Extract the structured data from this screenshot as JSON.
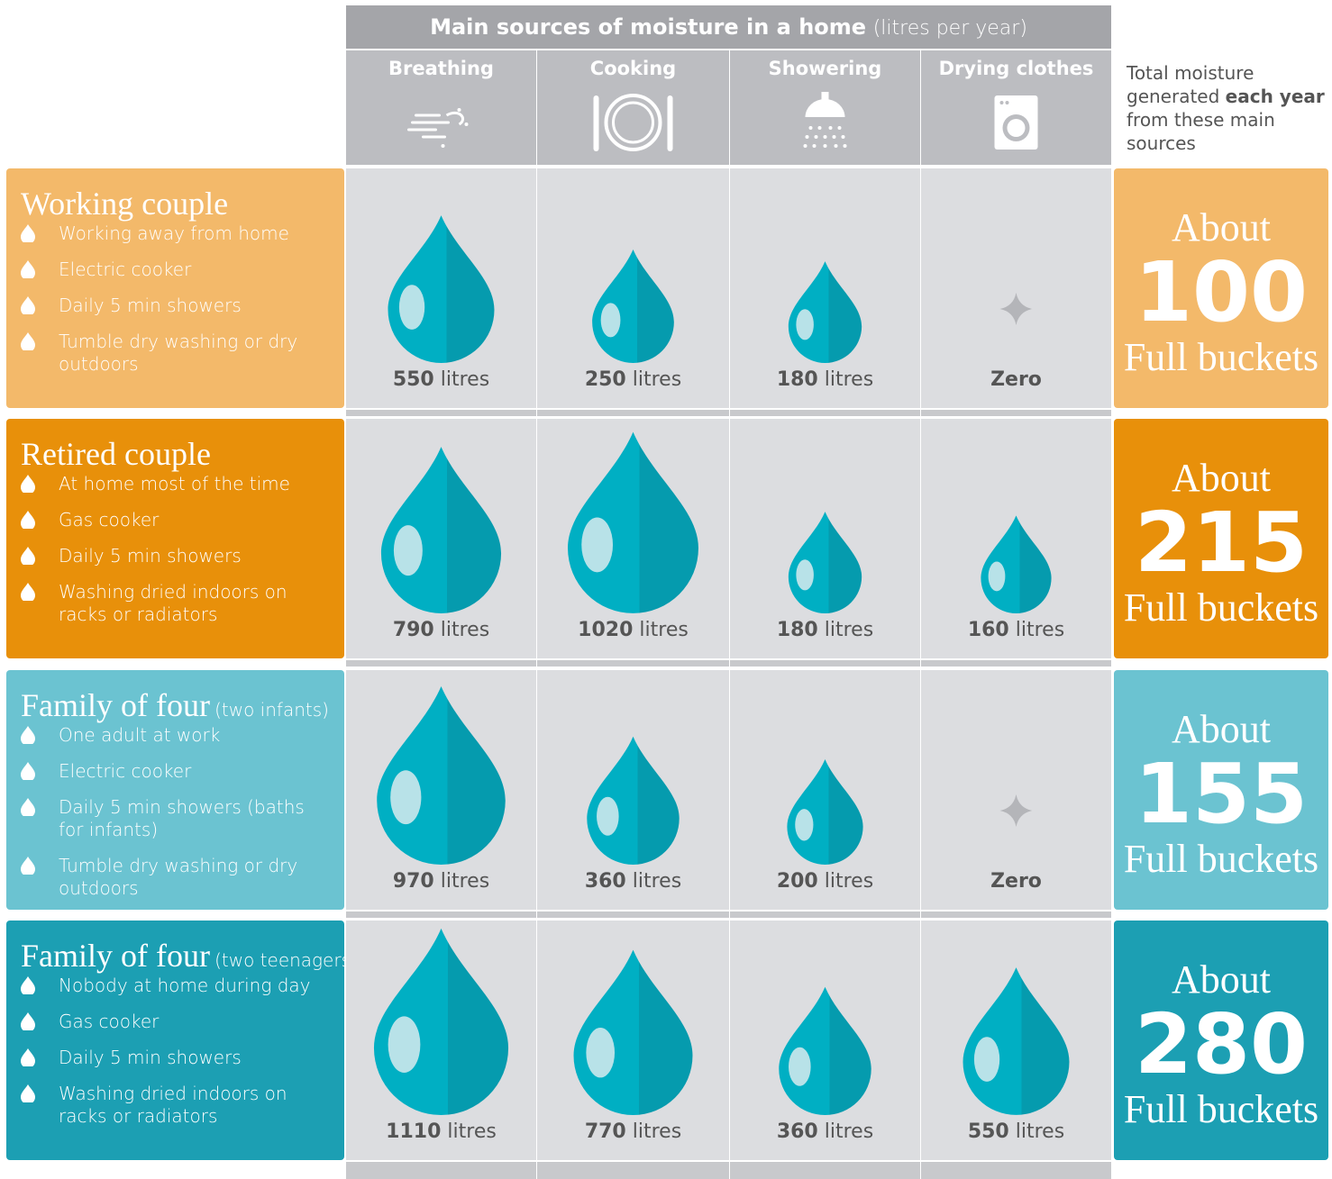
{
  "header": {
    "title": "Main sources of moisture in a home",
    "unit": "(litres per year)"
  },
  "columns": [
    "Breathing",
    "Cooking",
    "Showering",
    "Drying clothes"
  ],
  "total_note": {
    "before": "Total moisture generated",
    "bold": "each year",
    "after": "from these main sources"
  },
  "rows": [
    {
      "name": "Working couple",
      "color": "#f3b96a",
      "bullets": [
        "Working away from home",
        "Electric cooker",
        "Daily 5 min showers",
        "Tumble dry washing or dry outdoors"
      ],
      "cells": [
        {
          "value": 550,
          "unit": "litres"
        },
        {
          "value": 250,
          "unit": "litres"
        },
        {
          "value": 180,
          "unit": "litres"
        },
        {
          "value": 0,
          "label": "Zero"
        }
      ],
      "total": {
        "prefix": "About",
        "value": 100,
        "unit": "Full buckets"
      }
    },
    {
      "name": "Retired couple",
      "color": "#e8900a",
      "bullets": [
        "At home most of the time",
        "Gas cooker",
        "Daily 5 min showers",
        "Washing dried indoors on racks or radiators"
      ],
      "cells": [
        {
          "value": 790,
          "unit": "litres"
        },
        {
          "value": 1020,
          "unit": "litres"
        },
        {
          "value": 180,
          "unit": "litres"
        },
        {
          "value": 160,
          "unit": "litres"
        }
      ],
      "total": {
        "prefix": "About",
        "value": 215,
        "unit": "Full buckets"
      }
    },
    {
      "name": "Family of four",
      "note": "(two infants)",
      "color": "#6bc3d1",
      "bullets": [
        "One adult at work",
        "Electric cooker",
        "Daily 5 min showers (baths for infants)",
        "Tumble dry washing or dry outdoors"
      ],
      "cells": [
        {
          "value": 970,
          "unit": "litres"
        },
        {
          "value": 360,
          "unit": "litres"
        },
        {
          "value": 200,
          "unit": "litres"
        },
        {
          "value": 0,
          "label": "Zero"
        }
      ],
      "total": {
        "prefix": "About",
        "value": 155,
        "unit": "Full buckets"
      }
    },
    {
      "name": "Family of four",
      "note": "(two teenagers)",
      "color": "#1c9fb3",
      "bullets": [
        "Nobody at home during day",
        "Gas cooker",
        "Daily 5 min showers",
        "Washing dried indoors on racks or radiators"
      ],
      "cells": [
        {
          "value": 1110,
          "unit": "litres"
        },
        {
          "value": 770,
          "unit": "litres"
        },
        {
          "value": 360,
          "unit": "litres"
        },
        {
          "value": 550,
          "unit": "litres"
        }
      ],
      "total": {
        "prefix": "About",
        "value": 280,
        "unit": "Full buckets"
      }
    }
  ]
}
